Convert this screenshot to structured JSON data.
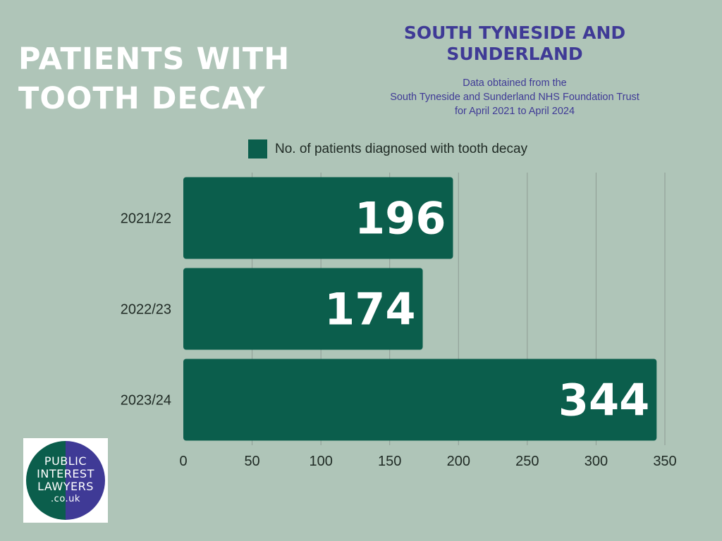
{
  "header": {
    "title_lines": [
      "PATIENTS WITH",
      "TOOTH DECAY"
    ],
    "region_lines": [
      "SOUTH TYNESIDE AND",
      "SUNDERLAND"
    ],
    "source_lines": [
      "Data obtained from the",
      "South Tyneside and Sunderland NHS Foundation Trust",
      "for April 2021 to April 2024"
    ]
  },
  "logo": {
    "lines": [
      "PUBLIC",
      "INTEREST",
      "LAWYERS",
      ".co.uk"
    ],
    "colors": {
      "left": "#0b5e4c",
      "right": "#3f3a96"
    }
  },
  "colors": {
    "background": "#afc5b8",
    "bar": "#0b5e4c",
    "accent_text": "#3f3a96",
    "grid": "#8e9c94"
  },
  "chart_data": {
    "type": "bar",
    "orientation": "horizontal",
    "title": "",
    "xlabel": "",
    "ylabel": "",
    "categories": [
      "2021/22",
      "2022/23",
      "2023/24"
    ],
    "series": [
      {
        "name": "No. of patients diagnosed with tooth decay",
        "values": [
          196,
          174,
          344
        ]
      }
    ],
    "xlim": [
      0,
      350
    ],
    "x_ticks": [
      0,
      50,
      100,
      150,
      200,
      250,
      300,
      350
    ],
    "grid": "vertical",
    "legend": "top"
  }
}
